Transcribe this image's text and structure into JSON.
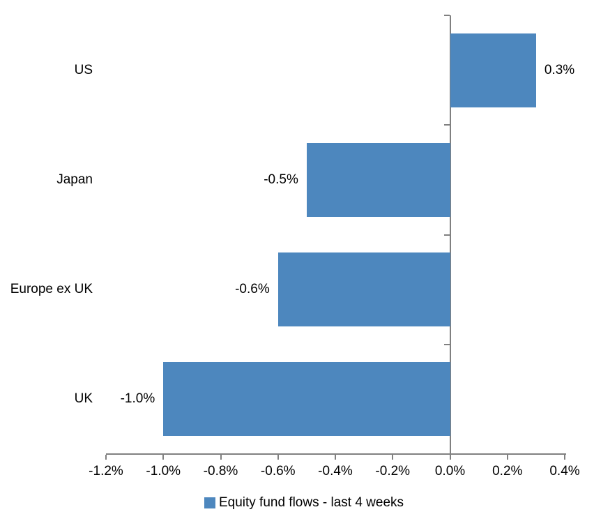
{
  "chart_data": {
    "type": "bar",
    "orientation": "horizontal",
    "title": "",
    "categories": [
      "US",
      "Japan",
      "Europe ex UK",
      "UK"
    ],
    "values": [
      0.3,
      -0.5,
      -0.6,
      -1.0
    ],
    "data_labels": [
      "0.3%",
      "-0.5%",
      "-0.6%",
      "-1.0%"
    ],
    "series_name": "Equity fund flows - last 4 weeks",
    "xlim": [
      -1.2,
      0.4
    ],
    "x_ticks": [
      -1.2,
      -1.0,
      -0.8,
      -0.6,
      -0.4,
      -0.2,
      0.0,
      0.2,
      0.4
    ],
    "x_tick_labels": [
      "-1.2%",
      "-1.0%",
      "-0.8%",
      "-0.6%",
      "-0.4%",
      "-0.2%",
      "0.0%",
      "0.2%",
      "0.4%"
    ],
    "grid": false,
    "legend_position": "bottom",
    "colors": {
      "bar": "#4D87BE",
      "axis": "#808080",
      "text": "#000000",
      "background": "#FFFFFF"
    }
  }
}
